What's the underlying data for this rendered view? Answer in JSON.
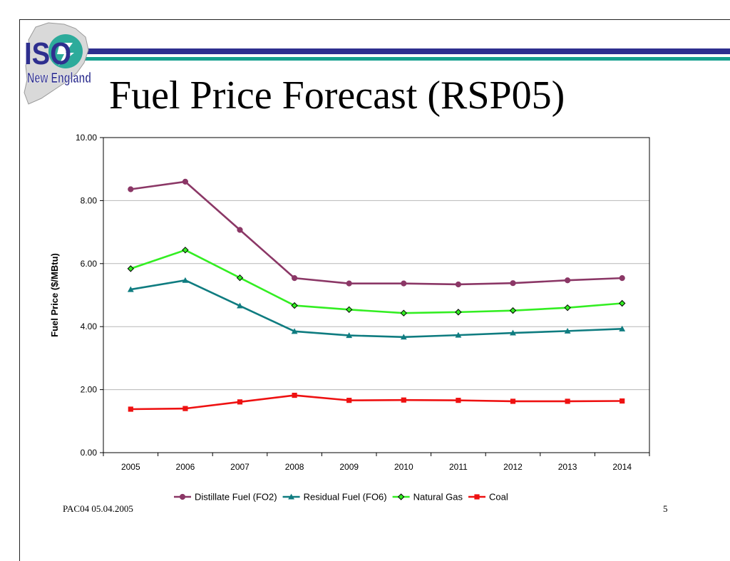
{
  "slide": {
    "title": "Fuel Price Forecast (RSP05)",
    "footer_left": "PAC04 05.04.2005",
    "page_number": "5",
    "logo": {
      "top_text": "ISO",
      "bottom_text": "New England"
    },
    "colors": {
      "band_navy": "#2e2f8f",
      "band_teal": "#17a08f"
    }
  },
  "chart_data": {
    "type": "line",
    "title": "",
    "xlabel": "",
    "ylabel": "Fuel Price ($/MBtu)",
    "ylim": [
      0,
      10
    ],
    "yticks": [
      "0.00",
      "2.00",
      "4.00",
      "6.00",
      "8.00",
      "10.00"
    ],
    "categories": [
      "2005",
      "2006",
      "2007",
      "2008",
      "2009",
      "2010",
      "2011",
      "2012",
      "2013",
      "2014"
    ],
    "grid": true,
    "legend": "bottom",
    "series": [
      {
        "name": "Distillate Fuel (FO2)",
        "color": "#8b3766",
        "marker": "circle",
        "values": [
          8.36,
          8.6,
          7.07,
          5.54,
          5.37,
          5.37,
          5.34,
          5.38,
          5.47,
          5.54
        ]
      },
      {
        "name": "Residual Fuel (FO6)",
        "color": "#0f7c80",
        "marker": "triangle",
        "values": [
          5.18,
          5.47,
          4.66,
          3.85,
          3.72,
          3.67,
          3.73,
          3.8,
          3.86,
          3.93
        ]
      },
      {
        "name": "Natural Gas",
        "color": "#33ee22",
        "marker": "diamond",
        "values": [
          5.84,
          6.43,
          5.55,
          4.67,
          4.54,
          4.43,
          4.46,
          4.51,
          4.6,
          4.74
        ]
      },
      {
        "name": "Coal",
        "color": "#ee1111",
        "marker": "square",
        "values": [
          1.38,
          1.4,
          1.61,
          1.82,
          1.66,
          1.67,
          1.66,
          1.63,
          1.63,
          1.64
        ]
      }
    ]
  }
}
